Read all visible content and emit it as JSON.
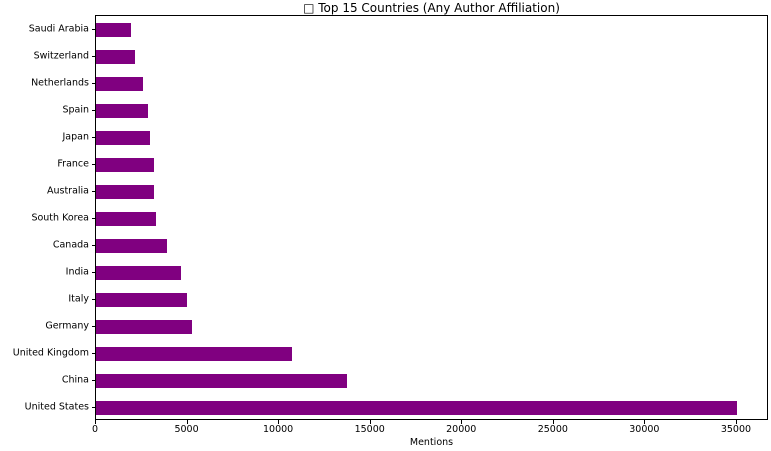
{
  "chart_data": {
    "type": "bar",
    "orientation": "horizontal",
    "title": "□ Top 15 Countries (Any Author Affiliation)",
    "xlabel": "Mentions",
    "ylabel": "",
    "categories_top_to_bottom": [
      "Saudi Arabia",
      "Switzerland",
      "Netherlands",
      "Spain",
      "Japan",
      "France",
      "Australia",
      "South Korea",
      "Canada",
      "India",
      "Italy",
      "Germany",
      "United Kingdom",
      "China",
      "United States"
    ],
    "values": [
      1900,
      2150,
      2600,
      2850,
      2950,
      3150,
      3200,
      3300,
      3900,
      4650,
      5000,
      5250,
      10750,
      13750,
      35100
    ],
    "series": [
      {
        "name": "Mentions",
        "values": [
          1900,
          2150,
          2600,
          2850,
          2950,
          3150,
          3200,
          3300,
          3900,
          4650,
          5000,
          5250,
          10750,
          13750,
          35100
        ]
      }
    ],
    "x_ticks": [
      0,
      5000,
      10000,
      15000,
      20000,
      25000,
      30000,
      35000
    ],
    "xlim": [
      0,
      36750
    ],
    "bar_color": "#800080",
    "background_color": "#ffffff",
    "grid": false,
    "legend": false
  }
}
